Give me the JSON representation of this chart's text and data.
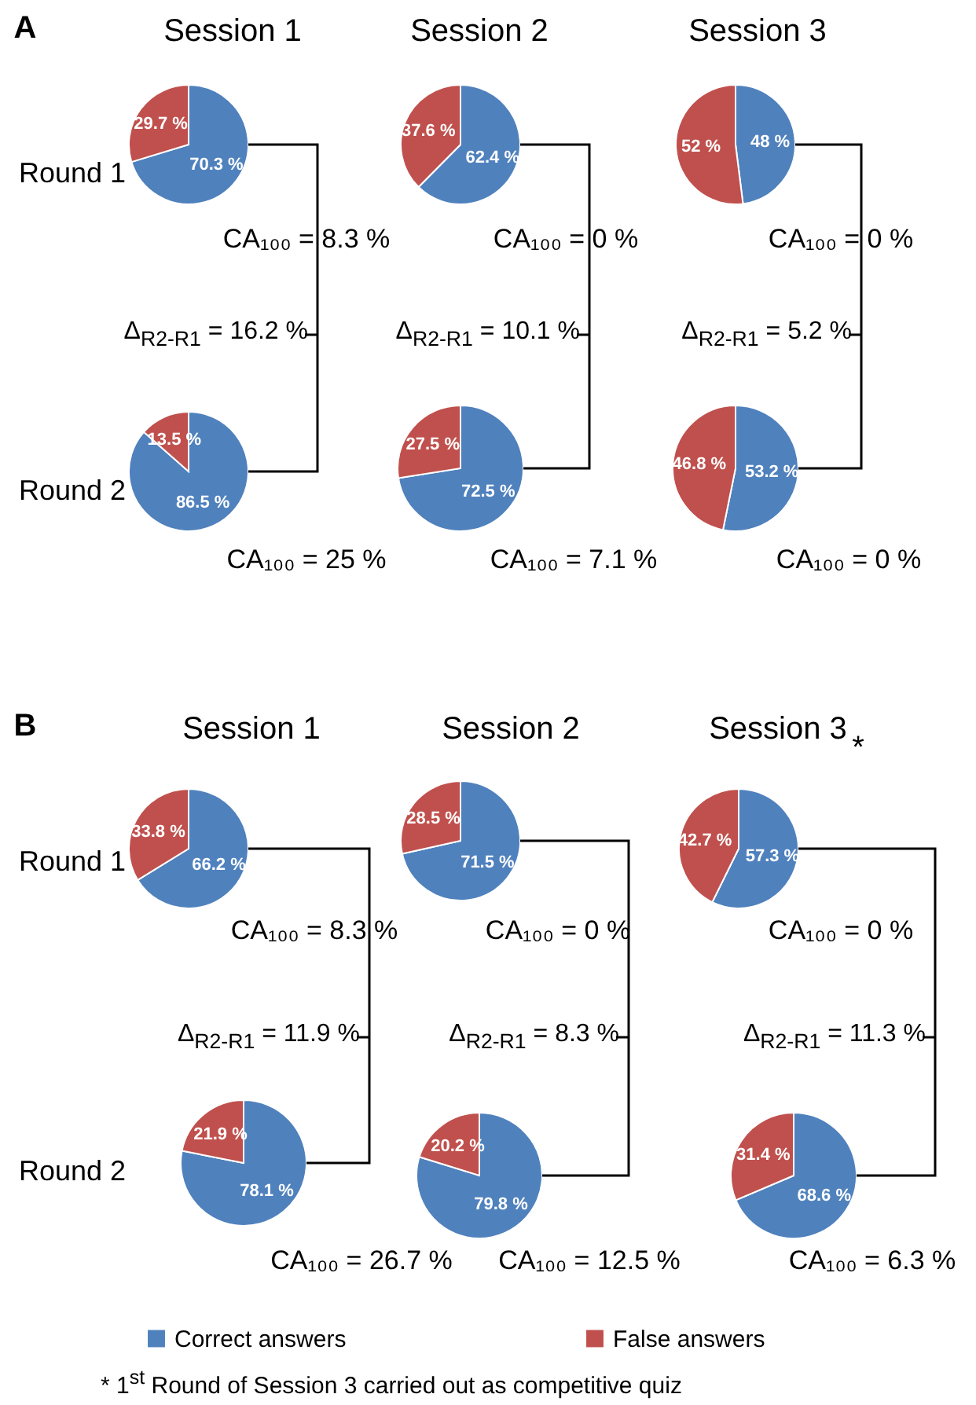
{
  "chart_data": [
    {
      "type": "pie",
      "title": "Session 1",
      "ylabel": "Round 1",
      "subtitle": "CA₁₀₀ = 8.3 %",
      "categories": [
        "Correct answers",
        "False answers"
      ],
      "values": [
        70.3,
        29.7
      ],
      "colors": [
        "#4f81bd",
        "#c0504d"
      ],
      "value_labels": [
        "70.3 %",
        "29.7 %"
      ],
      "legend": "bottom",
      "annotations": [
        "Δ$_{R2-R1}$ = 16.2 %",
        "A"
      ]
    },
    {
      "type": "pie",
      "title": "Session 2",
      "subtitle": "CA₁₀₀ = 0 %",
      "categories": [
        null,
        null
      ],
      "values": [
        62.4,
        37.6
      ],
      "colors": [
        "#4f81bd",
        "#c0504d"
      ],
      "value_labels": [
        "62.4 %",
        "37.6 %"
      ],
      "annotations": [
        "Δ$_{R2-R1}$ = 10.1 %"
      ]
    },
    {
      "type": "pie",
      "title": "Session 3",
      "subtitle": "CA₁₀₀ = 0 %",
      "categories": [
        null,
        null
      ],
      "values": [
        48,
        52
      ],
      "colors": [
        "#4f81bd",
        "#c0504d"
      ],
      "value_labels": [
        "48 %",
        "52 %"
      ],
      "annotations": [
        "Δ$_{R2-R1}$ = 5.2 %"
      ]
    },
    {
      "type": "pie",
      "ylabel": "Round 2",
      "subtitle": "CA₁₀₀ = 25 %",
      "categories": [
        null,
        null
      ],
      "values": [
        86.5,
        13.5
      ],
      "colors": [
        "#4f81bd",
        "#c0504d"
      ],
      "value_labels": [
        "86.5 %",
        "13.5 %"
      ]
    },
    {
      "type": "pie",
      "subtitle": "CA₁₀₀ = 7.1 %",
      "categories": [
        null,
        null
      ],
      "values": [
        72.5,
        27.5
      ],
      "colors": [
        "#4f81bd",
        "#c0504d"
      ],
      "value_labels": [
        "72.5 %",
        "27.5 %"
      ]
    },
    {
      "type": "pie",
      "subtitle": "CA₁₀₀ = 0 %",
      "categories": [
        null,
        null
      ],
      "values": [
        53.2,
        46.8
      ],
      "colors": [
        "#4f81bd",
        "#c0504d"
      ],
      "value_labels": [
        "53.2 %",
        "46.8 %"
      ]
    },
    {
      "type": "pie",
      "title": "Session 1",
      "ylabel": "Round 1",
      "subtitle": "CA₁₀₀ = 8.3 %",
      "categories": [
        null,
        null
      ],
      "values": [
        66.2,
        33.8
      ],
      "colors": [
        "#4f81bd",
        "#c0504d"
      ],
      "value_labels": [
        "66.2 %",
        "33.8 %"
      ],
      "annotations": [
        "Δ$_{R2-R1}$ = 11.9 %",
        "B"
      ]
    },
    {
      "type": "pie",
      "title": "Session 2",
      "subtitle": "CA₁₀₀ = 0 %",
      "categories": [
        null,
        null
      ],
      "values": [
        71.5,
        28.5
      ],
      "colors": [
        "#4f81bd",
        "#c0504d"
      ],
      "value_labels": [
        "71.5 %",
        "28.5 %"
      ],
      "annotations": [
        "Δ$_{R2-R1}$ = 8.3 %"
      ]
    },
    {
      "type": "pie",
      "title": "Session 3",
      "subtitle": "CA₁₀₀ = 0 %",
      "categories": [
        null,
        null
      ],
      "values": [
        57.3,
        42.7
      ],
      "colors": [
        "#4f81bd",
        "#c0504d"
      ],
      "value_labels": [
        "57.3 %",
        "42.7 %"
      ],
      "annotations": [
        "Δ$_{R2-R1}$ = 11.3 %",
        "*"
      ]
    },
    {
      "type": "pie",
      "ylabel": "Round 2",
      "subtitle": "CA₁₀₀ = 26.7 %",
      "categories": [
        null,
        null
      ],
      "values": [
        78.1,
        21.9
      ],
      "colors": [
        "#4f81bd",
        "#c0504d"
      ],
      "value_labels": [
        "78.1 %",
        "21.9 %"
      ]
    },
    {
      "type": "pie",
      "subtitle": "CA₁₀₀ = 12.5 %",
      "categories": [
        null,
        null
      ],
      "values": [
        79.8,
        20.2
      ],
      "colors": [
        "#4f81bd",
        "#c0504d"
      ],
      "value_labels": [
        "79.8 %",
        "20.2 %"
      ]
    },
    {
      "type": "pie",
      "subtitle": "CA₁₀₀ = 6.3 %",
      "categories": [
        null,
        null
      ],
      "values": [
        68.6,
        31.4
      ],
      "colors": [
        "#4f81bd",
        "#c0504d"
      ],
      "value_labels": [
        "68.6 %",
        "31.4 %"
      ],
      "annotations": [
        "* 1$^{st}$ Round of Session 3 carried out as competitive quiz"
      ]
    }
  ]
}
